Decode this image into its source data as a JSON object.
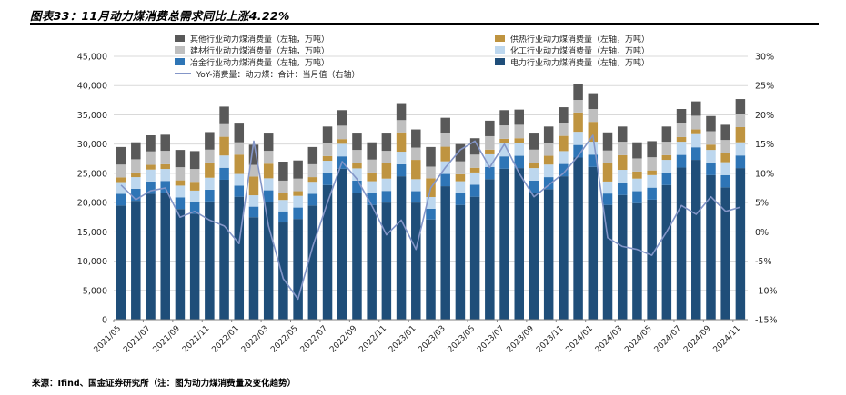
{
  "header": {
    "title": "图表33：11月动力煤消费总需求同比上涨4.22%"
  },
  "footer": {
    "source": "来源：Ifind、国金证券研究所（注：图为动力煤消费量及变化趋势）"
  },
  "colors": {
    "power": "#1f4e79",
    "metallurgy": "#2e75b6",
    "chemical": "#bdd7ee",
    "heating": "#bf9440",
    "building": "#bfbfbf",
    "other": "#595959",
    "yoy_line": "#8496c8",
    "gridline": "#d9d9d9",
    "axis": "#808080"
  },
  "legend": {
    "columns": [
      [
        {
          "series": "other",
          "label": "其他行业动力煤消费量（左轴，万吨）",
          "marker": "square",
          "color": "#595959"
        },
        {
          "series": "building",
          "label": "建材行业动力煤消费量（左轴，万吨）",
          "marker": "square",
          "color": "#bfbfbf"
        },
        {
          "series": "metallurgy",
          "label": "冶金行业动力煤消费量（左轴，万吨）",
          "marker": "square",
          "color": "#2e75b6"
        },
        {
          "series": "yoy",
          "label": "YoY-消费量：动力煤：合计：当月值（右轴）",
          "marker": "line",
          "color": "#8496c8"
        }
      ],
      [
        {
          "series": "heating",
          "label": "供热行业动力煤消费量（左轴，万吨）",
          "marker": "square",
          "color": "#bf9440"
        },
        {
          "series": "chemical",
          "label": "化工行业动力煤消费量（左轴，万吨）",
          "marker": "square",
          "color": "#bdd7ee"
        },
        {
          "series": "power",
          "label": "电力行业动力煤消费量（左轴，万吨）",
          "marker": "square",
          "color": "#1f4e79"
        }
      ]
    ]
  },
  "chart_data": {
    "type": "bar",
    "stacked": true,
    "grid": true,
    "legend_position": "top",
    "title": "11月动力煤消费总需求同比上涨4.22%",
    "xlabel": "",
    "ylabel_left": "万吨",
    "ylabel_right": "YoY %",
    "categories": [
      "2021/05",
      "2021/06",
      "2021/07",
      "2021/08",
      "2021/09",
      "2021/10",
      "2021/11",
      "2021/12",
      "2022/01",
      "2022/02",
      "2022/03",
      "2022/04",
      "2022/05",
      "2022/06",
      "2022/07",
      "2022/08",
      "2022/09",
      "2022/10",
      "2022/11",
      "2022/12",
      "2023/01",
      "2023/02",
      "2023/03",
      "2023/04",
      "2023/05",
      "2023/06",
      "2023/07",
      "2023/08",
      "2023/09",
      "2023/10",
      "2023/11",
      "2023/12",
      "2024/01",
      "2024/02",
      "2024/03",
      "2024/04",
      "2024/05",
      "2024/06",
      "2024/07",
      "2024/08",
      "2024/09",
      "2024/10",
      "2024/11"
    ],
    "x_tick_labels": [
      "2021/05",
      "2021/07",
      "2021/09",
      "2021/11",
      "2022/01",
      "2022/03",
      "2022/05",
      "2022/07",
      "2022/09",
      "2022/11",
      "2023/01",
      "2023/03",
      "2023/05",
      "2023/07",
      "2023/09",
      "2023/11",
      "2024/01",
      "2024/03",
      "2024/05",
      "2024/07",
      "2024/09",
      "2024/11"
    ],
    "series": [
      {
        "key": "power",
        "name": "电力行业动力煤消费量（左轴，万吨）",
        "axis": "left",
        "color": "#1f4e79",
        "values": [
          19500,
          20300,
          21500,
          21600,
          18900,
          18100,
          20200,
          23900,
          21000,
          17500,
          20100,
          16600,
          17200,
          19500,
          23000,
          25800,
          21700,
          19600,
          20000,
          24500,
          20000,
          17100,
          22800,
          19600,
          21000,
          24000,
          25800,
          25900,
          21700,
          22300,
          24500,
          27700,
          26100,
          19600,
          21300,
          19900,
          20500,
          23000,
          26000,
          27300,
          24700,
          22600,
          25900
        ]
      },
      {
        "key": "metallurgy",
        "name": "冶金行业动力煤消费量（左轴，万吨）",
        "axis": "left",
        "color": "#2e75b6",
        "values": [
          2000,
          2050,
          2100,
          2100,
          2000,
          1950,
          2000,
          2050,
          1900,
          1800,
          2000,
          1900,
          1950,
          2000,
          2050,
          2100,
          2050,
          2000,
          2000,
          2050,
          1950,
          1850,
          2100,
          2000,
          2050,
          2100,
          2100,
          2100,
          2050,
          2050,
          2100,
          2150,
          2100,
          1950,
          2100,
          2050,
          2050,
          2100,
          2150,
          2150,
          2100,
          2100,
          2150
        ]
      },
      {
        "key": "chemical",
        "name": "化工行业动力煤消费量（左轴，万吨）",
        "axis": "left",
        "color": "#bdd7ee",
        "values": [
          2000,
          2000,
          2050,
          2050,
          2000,
          2000,
          2050,
          2100,
          2000,
          1950,
          2050,
          1950,
          2000,
          2050,
          2100,
          2150,
          2100,
          2050,
          2100,
          2150,
          2050,
          2000,
          2150,
          2050,
          2100,
          2150,
          2200,
          2200,
          2150,
          2150,
          2200,
          2250,
          2200,
          2050,
          2200,
          2150,
          2150,
          2200,
          2250,
          2250,
          2200,
          2200,
          2250
        ]
      },
      {
        "key": "heating",
        "name": "供热行业动力煤消费量（左轴，万吨）",
        "axis": "left",
        "color": "#bf9440",
        "values": [
          800,
          800,
          800,
          800,
          900,
          1500,
          2600,
          3200,
          3300,
          3200,
          2500,
          1200,
          800,
          800,
          800,
          800,
          900,
          1500,
          2600,
          3300,
          3300,
          3200,
          2500,
          1200,
          800,
          800,
          800,
          800,
          900,
          1500,
          2600,
          3300,
          3400,
          3200,
          2500,
          1200,
          800,
          800,
          800,
          800,
          900,
          1500,
          2600
        ]
      },
      {
        "key": "building",
        "name": "建材行业动力煤消费量（左轴，万吨）",
        "axis": "left",
        "color": "#bfbfbf",
        "values": [
          2200,
          2250,
          2300,
          2300,
          2250,
          2200,
          2200,
          2150,
          2100,
          2000,
          2200,
          2100,
          2150,
          2200,
          2250,
          2300,
          2250,
          2200,
          2150,
          2100,
          2100,
          2000,
          2300,
          2200,
          2250,
          2300,
          2300,
          2300,
          2250,
          2250,
          2200,
          2150,
          2200,
          2100,
          2300,
          2250,
          2250,
          2300,
          2350,
          2350,
          2300,
          2300,
          2300
        ]
      },
      {
        "key": "other",
        "name": "其他行业动力煤消费量（左轴，万吨）",
        "axis": "left",
        "color": "#595959",
        "values": [
          3000,
          2900,
          2750,
          2750,
          2950,
          3050,
          3000,
          3000,
          3200,
          3450,
          2950,
          3250,
          3100,
          2950,
          2800,
          2650,
          2800,
          2950,
          2950,
          2900,
          3100,
          3350,
          2650,
          2950,
          2800,
          2650,
          2600,
          2600,
          2750,
          2750,
          2700,
          2650,
          2700,
          3100,
          2600,
          2750,
          2750,
          2600,
          2450,
          2450,
          2600,
          2600,
          2500
        ]
      }
    ],
    "line_series": {
      "key": "yoy",
      "name": "YoY-消费量：动力煤：合计：当月值（右轴）",
      "axis": "right",
      "color": "#8496c8",
      "values": [
        8,
        5.5,
        7,
        7.5,
        2.5,
        3.5,
        2,
        1,
        -2,
        15.5,
        1,
        -8,
        -11.5,
        -2.5,
        5,
        12,
        9,
        4.5,
        -0.5,
        2,
        -3,
        7.5,
        11,
        14,
        15.5,
        11,
        15,
        10,
        6,
        8,
        10,
        13,
        16.5,
        -1,
        -2.5,
        -3,
        -4,
        0,
        4.5,
        3,
        6,
        3.5,
        4.22
      ]
    },
    "left_axis": {
      "min": 0,
      "max": 45000,
      "step": 5000,
      "ticks": [
        0,
        5000,
        10000,
        15000,
        20000,
        25000,
        30000,
        35000,
        40000,
        45000
      ],
      "tick_labels": [
        "0",
        "5,000",
        "10,000",
        "15,000",
        "20,000",
        "25,000",
        "30,000",
        "35,000",
        "40,000",
        "45,000"
      ]
    },
    "right_axis": {
      "min": -15,
      "max": 30,
      "step": 5,
      "ticks": [
        -15,
        -10,
        -5,
        0,
        5,
        10,
        15,
        20,
        25,
        30
      ],
      "tick_labels": [
        "-15%",
        "-10%",
        "-5%",
        "0%",
        "5%",
        "10%",
        "15%",
        "20%",
        "25%",
        "30%"
      ]
    }
  }
}
